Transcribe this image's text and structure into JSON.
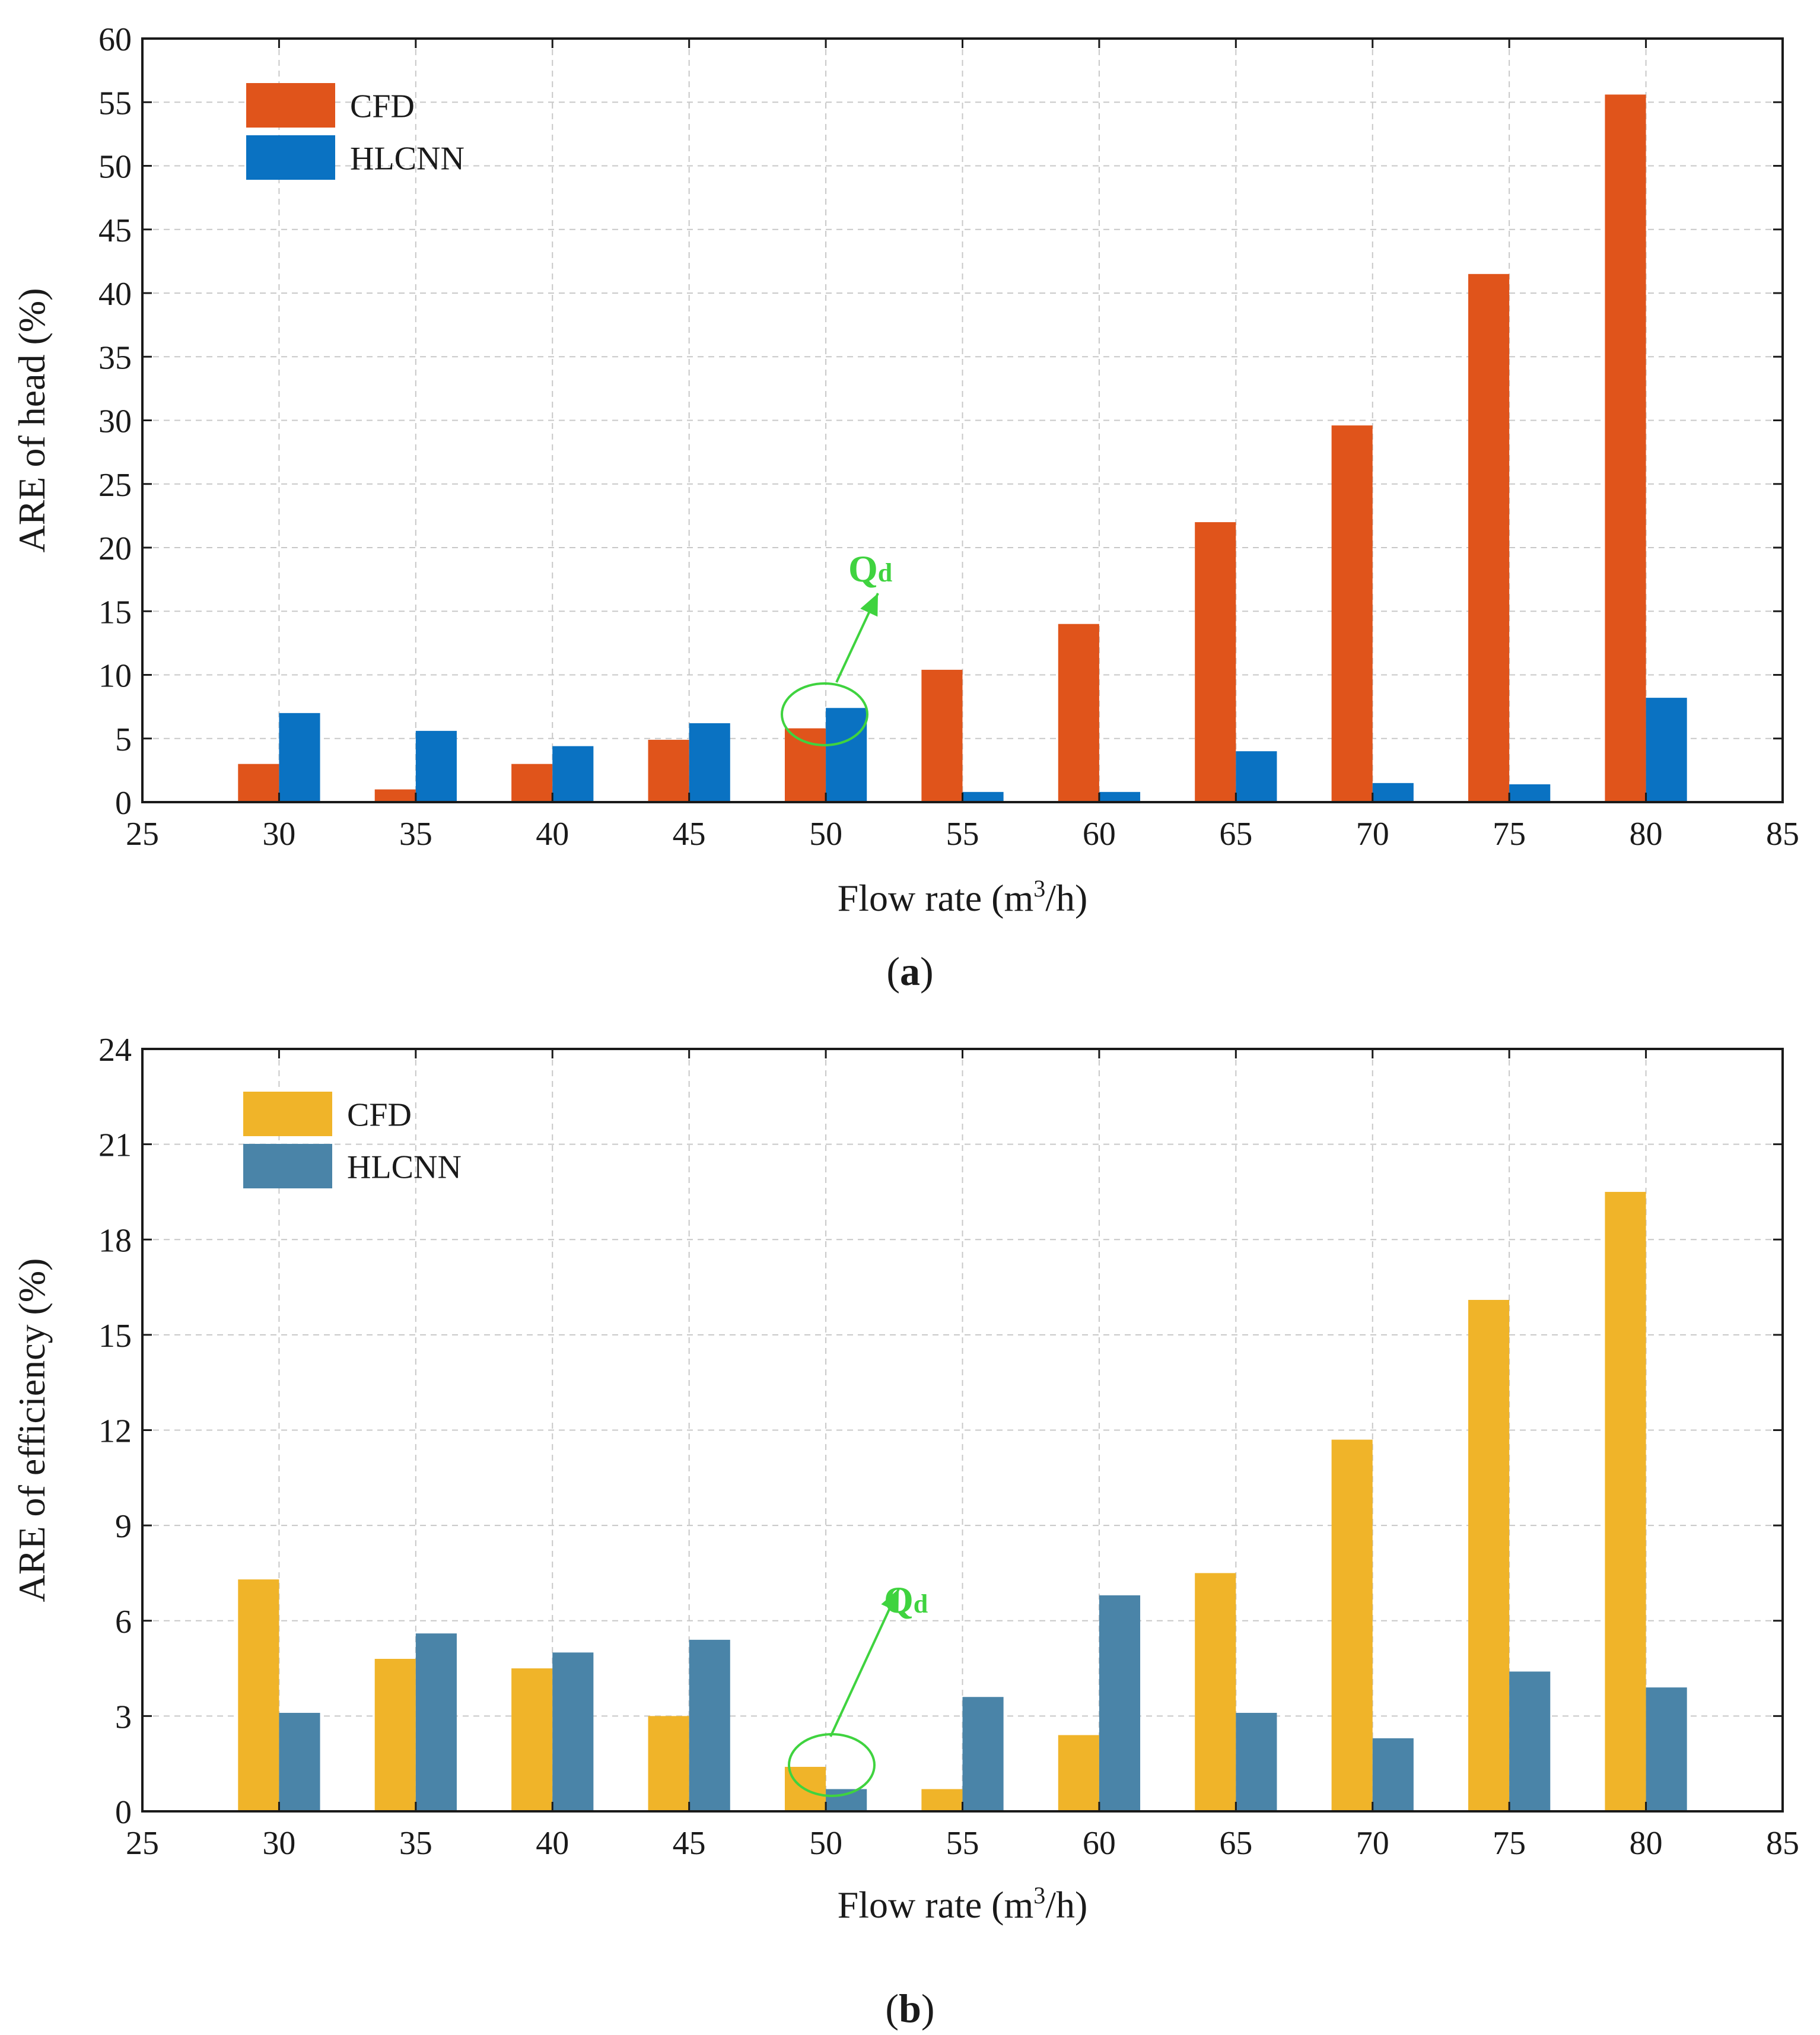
{
  "chart_data": [
    {
      "type": "bar",
      "panel_label": "a",
      "xlabel": "Flow rate (m",
      "xlabel_sup": "3",
      "xlabel_tail": "/h)",
      "ylabel": "ARE of head (%)",
      "xlim": [
        25,
        85
      ],
      "ylim": [
        0,
        60
      ],
      "xticks": [
        25,
        30,
        35,
        40,
        45,
        50,
        55,
        60,
        65,
        70,
        75,
        80,
        85
      ],
      "yticks": [
        0,
        5,
        10,
        15,
        20,
        25,
        30,
        35,
        40,
        45,
        50,
        55,
        60
      ],
      "categories": [
        30,
        35,
        40,
        45,
        50,
        55,
        60,
        65,
        70,
        75,
        80
      ],
      "grid": true,
      "legend_position": "top-left",
      "series": [
        {
          "name": "CFD",
          "color": "#e0541b",
          "values": [
            3.0,
            1.0,
            3.0,
            4.9,
            5.8,
            10.4,
            14.0,
            22.0,
            29.6,
            41.5,
            55.6
          ]
        },
        {
          "name": "HLCNN",
          "color": "#0a72c2",
          "values": [
            7.0,
            5.6,
            4.4,
            6.2,
            7.4,
            0.8,
            0.8,
            4.0,
            1.5,
            1.4,
            8.2
          ]
        }
      ],
      "annotation": {
        "text": "Q",
        "subscript": "d",
        "at_x": 50
      }
    },
    {
      "type": "bar",
      "panel_label": "b",
      "xlabel": "Flow rate (m",
      "xlabel_sup": "3",
      "xlabel_tail": "/h)",
      "ylabel": "ARE of efficiency (%)",
      "xlim": [
        25,
        85
      ],
      "ylim": [
        0,
        24
      ],
      "xticks": [
        25,
        30,
        35,
        40,
        45,
        50,
        55,
        60,
        65,
        70,
        75,
        80,
        85
      ],
      "yticks": [
        0,
        3,
        6,
        9,
        12,
        15,
        18,
        21,
        24
      ],
      "categories": [
        30,
        35,
        40,
        45,
        50,
        55,
        60,
        65,
        70,
        75,
        80
      ],
      "grid": true,
      "legend_position": "top-left",
      "series": [
        {
          "name": "CFD",
          "color": "#f0b429",
          "values": [
            7.3,
            4.8,
            4.5,
            3.0,
            1.4,
            0.7,
            2.4,
            7.5,
            11.7,
            16.1,
            19.5
          ]
        },
        {
          "name": "HLCNN",
          "color": "#4a84a8",
          "values": [
            3.1,
            5.6,
            5.0,
            5.4,
            0.7,
            3.6,
            6.8,
            3.1,
            2.3,
            4.4,
            3.9
          ]
        }
      ],
      "annotation": {
        "text": "Q",
        "subscript": "d",
        "at_x": 50
      }
    }
  ]
}
